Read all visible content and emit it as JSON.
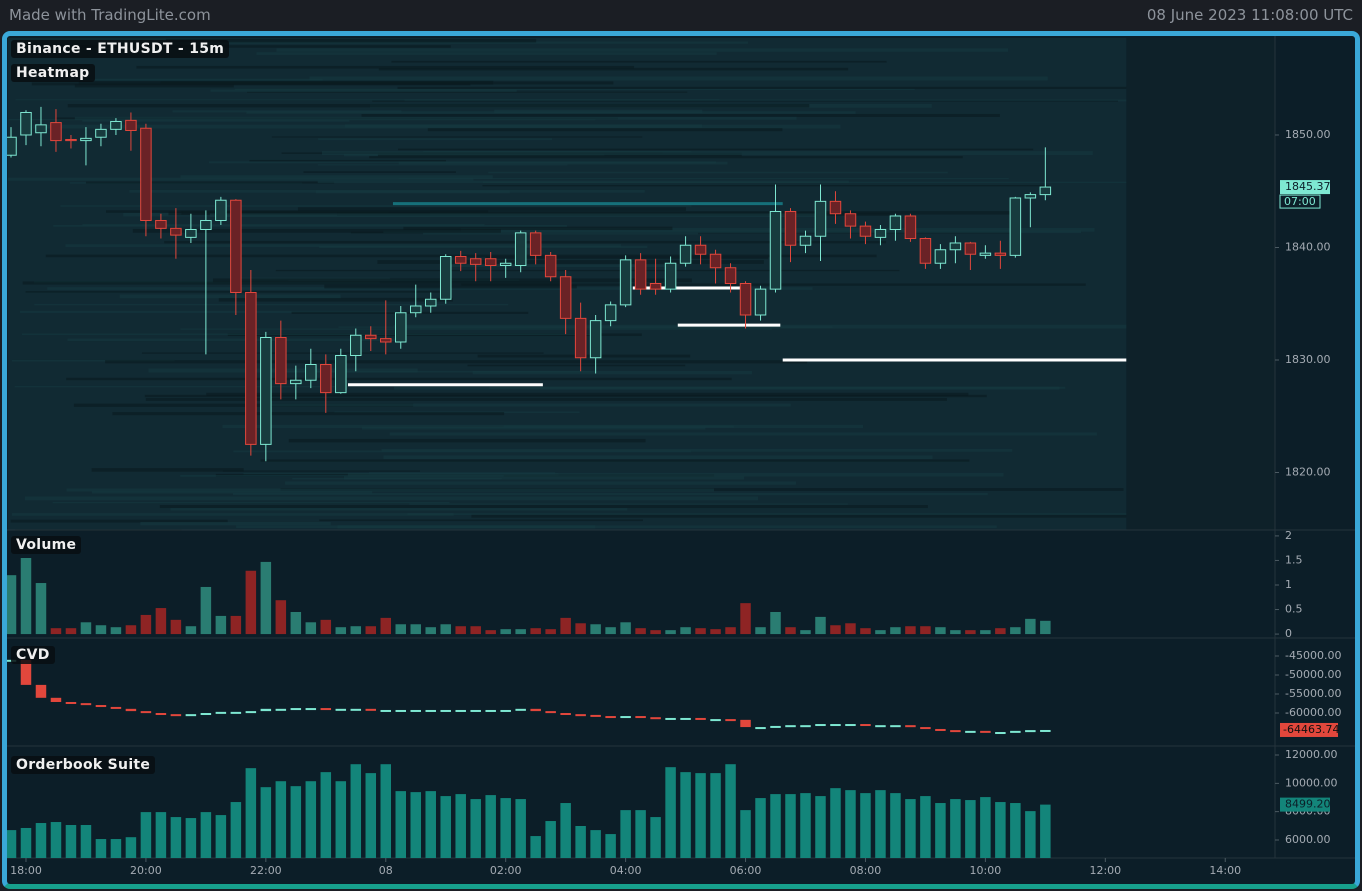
{
  "header": {
    "left": "Made with TradingLite.com",
    "right": "08 June 2023 11:08:00 UTC"
  },
  "chart_data": [
    {
      "type": "candlestick",
      "title": "Binance - ETHUSDT - 15m",
      "subtitle": "Heatmap",
      "up_color": "#7ee8d2",
      "down_color": "#e2473c",
      "x": [
        -0.25,
        0,
        0.25,
        0.5,
        0.75,
        1,
        1.25,
        1.5,
        1.75,
        2,
        2.25,
        2.5,
        2.75,
        3,
        3.25,
        3.5,
        3.75,
        4,
        4.25,
        4.5,
        4.75,
        5,
        5.25,
        5.5,
        5.75,
        6,
        6.25,
        6.5,
        6.75,
        7,
        7.25,
        7.5,
        7.75,
        8,
        8.25,
        8.5,
        8.75,
        9,
        9.25,
        9.5,
        9.75,
        10,
        10.25,
        10.5,
        10.75,
        11,
        11.25,
        11.5,
        11.75,
        12,
        12.25,
        12.5,
        12.75,
        13,
        13.25,
        13.5,
        13.75,
        14,
        14.25,
        14.5,
        14.75,
        15,
        15.25,
        15.5,
        15.75,
        16,
        16.25,
        16.5,
        16.75,
        17
      ],
      "open": [
        1848.2,
        1850,
        1850.2,
        1851.1,
        1849.6,
        1849.5,
        1849.8,
        1850.5,
        1851.3,
        1850.6,
        1842.4,
        1841.7,
        1840.9,
        1841.6,
        1842.4,
        1844.2,
        1836,
        1822.5,
        1832,
        1827.9,
        1828.2,
        1829.6,
        1827.1,
        1830.4,
        1832.2,
        1831.9,
        1831.6,
        1834.2,
        1834.8,
        1835.4,
        1839.2,
        1839,
        1839,
        1838.4,
        1838.4,
        1841.3,
        1839.3,
        1837.4,
        1833.7,
        1830.2,
        1833.5,
        1834.9,
        1838.9,
        1836.8,
        1836.3,
        1838.6,
        1840.2,
        1839.4,
        1838.2,
        1836.8,
        1834,
        1836.3,
        1843.2,
        1840.2,
        1841,
        1844.1,
        1843,
        1841.9,
        1840.9,
        1841.6,
        1842.8,
        1840.8,
        1838.6,
        1839.8,
        1840.4,
        1839.3,
        1839.5,
        1839.3,
        1844.4,
        1844.7
      ],
      "high": [
        1850.7,
        1852.2,
        1852.5,
        1852.3,
        1850,
        1850.7,
        1851,
        1851.5,
        1852,
        1851,
        1843,
        1843.5,
        1843,
        1843.3,
        1844.5,
        1844.3,
        1838,
        1832.5,
        1833.5,
        1829.5,
        1831,
        1830.5,
        1831,
        1832.8,
        1833,
        1835.3,
        1834.8,
        1836.7,
        1836,
        1839.4,
        1839.7,
        1839.5,
        1839.6,
        1839,
        1841.5,
        1841.5,
        1839.6,
        1838,
        1835.1,
        1834,
        1835.2,
        1839.3,
        1839.5,
        1839,
        1839.2,
        1841,
        1841,
        1839.8,
        1838.6,
        1837,
        1836.6,
        1845.6,
        1843.5,
        1841.5,
        1845.6,
        1845,
        1843.3,
        1842.3,
        1842,
        1843,
        1843,
        1840.9,
        1840.3,
        1841,
        1840.5,
        1840.2,
        1840.6,
        1844.5,
        1844.9,
        1848.9
      ],
      "low": [
        1848,
        1849.1,
        1849,
        1848.5,
        1848.8,
        1847.3,
        1849,
        1850,
        1848.6,
        1841,
        1840.8,
        1839,
        1840.4,
        1830.5,
        1842,
        1834,
        1821.5,
        1821,
        1826.5,
        1826.5,
        1827.5,
        1825.3,
        1827,
        1829,
        1830.8,
        1830.5,
        1831,
        1833.8,
        1834.2,
        1835,
        1837.9,
        1837,
        1837,
        1837.3,
        1837.8,
        1838.5,
        1837,
        1832.3,
        1829,
        1828.8,
        1833,
        1834.7,
        1835.8,
        1835.8,
        1836,
        1838.3,
        1838.5,
        1836.8,
        1836,
        1832.8,
        1833.5,
        1836,
        1838.7,
        1839.5,
        1838.8,
        1842.1,
        1840.8,
        1840.3,
        1840.2,
        1840.6,
        1840.5,
        1838.1,
        1838.1,
        1838.6,
        1838,
        1839,
        1838.1,
        1839.1,
        1841.8,
        1844.2
      ],
      "close": [
        1849.8,
        1852,
        1850.9,
        1849.5,
        1849.5,
        1849.7,
        1850.5,
        1851.2,
        1850.4,
        1842.4,
        1841.7,
        1841.1,
        1841.6,
        1842.4,
        1844.2,
        1836,
        1822.5,
        1832,
        1827.9,
        1828.2,
        1829.6,
        1827.1,
        1830.4,
        1832.2,
        1831.9,
        1831.6,
        1834.2,
        1834.8,
        1835.4,
        1839.2,
        1838.6,
        1838.5,
        1838.4,
        1838.6,
        1841.3,
        1839.3,
        1837.4,
        1833.7,
        1830.2,
        1833.5,
        1834.9,
        1838.9,
        1836.3,
        1836.3,
        1838.6,
        1840.2,
        1839.4,
        1838.2,
        1836.8,
        1834,
        1836.3,
        1843.2,
        1840.2,
        1841,
        1844.1,
        1843,
        1841.9,
        1841,
        1841.6,
        1842.8,
        1840.8,
        1838.6,
        1839.8,
        1840.4,
        1839.4,
        1839.5,
        1839.3,
        1844.4,
        1844.7,
        1845.37
      ],
      "countdown": "07:00",
      "levels": [
        {
          "price": 1843.9,
          "x_start": 6.12,
          "x_end": 12.62,
          "color": "#16707a"
        },
        {
          "price": 1827.8,
          "x_start": 5.37,
          "x_end": 8.62,
          "color": "#ffffff"
        },
        {
          "price": 1836.4,
          "x_start": 10.12,
          "x_end": 12.08,
          "color": "#ffffff"
        },
        {
          "price": 1833.1,
          "x_start": 10.87,
          "x_end": 12.58,
          "color": "#ffffff"
        },
        {
          "price": 1830,
          "x_start": 12.62,
          "x_end": 18.35,
          "color": "#ffffff"
        }
      ],
      "xlim": [
        -0.3,
        20.83
      ],
      "xticks": [
        {
          "value": 0,
          "label": "18:00"
        },
        {
          "value": 2,
          "label": "20:00"
        },
        {
          "value": 4,
          "label": "22:00"
        },
        {
          "value": 6,
          "label": "08"
        },
        {
          "value": 8,
          "label": "02:00"
        },
        {
          "value": 10,
          "label": "04:00"
        },
        {
          "value": 12,
          "label": "06:00"
        },
        {
          "value": 14,
          "label": "08:00"
        },
        {
          "value": 16,
          "label": "10:00"
        },
        {
          "value": 18,
          "label": "12:00"
        },
        {
          "value": 20,
          "label": "14:00"
        }
      ],
      "ylim": [
        1814.89,
        1858.62
      ],
      "yticks": [
        {
          "value": 1820,
          "label": "1820.00"
        },
        {
          "value": 1830,
          "label": "1830.00"
        },
        {
          "value": 1840,
          "label": "1840.00"
        },
        {
          "value": 1850,
          "label": "1850.00"
        }
      ]
    },
    {
      "type": "bar",
      "title": "Volume",
      "up_color": "#2a7d72",
      "down_color": "#8e2424",
      "values": [
        1.2,
        1.55,
        1.04,
        0.12,
        0.12,
        0.24,
        0.18,
        0.14,
        0.18,
        0.39,
        0.53,
        0.29,
        0.16,
        0.96,
        0.37,
        0.37,
        1.29,
        1.47,
        0.69,
        0.45,
        0.24,
        0.29,
        0.14,
        0.16,
        0.16,
        0.33,
        0.2,
        0.2,
        0.14,
        0.2,
        0.16,
        0.16,
        0.08,
        0.1,
        0.1,
        0.12,
        0.1,
        0.33,
        0.22,
        0.2,
        0.14,
        0.24,
        0.12,
        0.08,
        0.08,
        0.14,
        0.12,
        0.1,
        0.14,
        0.63,
        0.14,
        0.45,
        0.14,
        0.08,
        0.35,
        0.18,
        0.22,
        0.12,
        0.08,
        0.14,
        0.16,
        0.16,
        0.14,
        0.08,
        0.08,
        0.08,
        0.12,
        0.14,
        0.31,
        0.27
      ],
      "ylim": [
        -0.08,
        2.1
      ],
      "yticks": [
        0,
        0.5,
        1,
        1.5,
        2
      ]
    },
    {
      "type": "cvd",
      "title": "CVD",
      "up_color": "#7ee8d2",
      "down_color": "#e2473c",
      "values": [
        -46000,
        -52600,
        -56000,
        -57100,
        -57400,
        -57900,
        -58400,
        -58900,
        -59500,
        -60000,
        -60300,
        -60500,
        -60300,
        -60000,
        -59700,
        -59700,
        -59500,
        -58900,
        -58900,
        -58700,
        -58700,
        -58900,
        -58900,
        -58900,
        -59200,
        -59200,
        -59200,
        -59200,
        -59200,
        -59200,
        -59200,
        -59200,
        -59200,
        -59200,
        -58900,
        -59500,
        -60000,
        -60300,
        -60500,
        -60800,
        -61100,
        -60800,
        -61100,
        -61300,
        -61300,
        -61300,
        -61600,
        -61600,
        -61800,
        -63700,
        -63700,
        -63400,
        -63200,
        -63200,
        -62900,
        -62900,
        -62900,
        -63200,
        -63200,
        -63200,
        -63700,
        -64200,
        -64500,
        -64700,
        -64700,
        -65000,
        -65000,
        -64700,
        -64500,
        -64463.74
      ],
      "ylim": [
        -68680,
        -40790
      ],
      "yticks": [
        {
          "value": -60000,
          "label": "-60000.00"
        },
        {
          "value": -55000,
          "label": "-55000.00"
        },
        {
          "value": -50000,
          "label": "-50000.00"
        },
        {
          "value": -45000,
          "label": "-45000.00"
        }
      ]
    },
    {
      "type": "bar",
      "title": "Orderbook Suite",
      "color": "#13857a",
      "values": [
        6700,
        6850,
        7200,
        7270,
        7060,
        7060,
        6070,
        6070,
        6200,
        7970,
        7970,
        7620,
        7550,
        7970,
        7760,
        8680,
        11070,
        9730,
        10150,
        9800,
        10150,
        10790,
        10150,
        11350,
        10720,
        11350,
        9450,
        9380,
        9450,
        9100,
        9240,
        8890,
        9170,
        8960,
        8890,
        6280,
        7340,
        8610,
        6990,
        6700,
        6420,
        8110,
        8110,
        7620,
        11140,
        10790,
        10720,
        10720,
        11350,
        8110,
        8960,
        9240,
        9240,
        9310,
        9100,
        9660,
        9520,
        9310,
        9520,
        9310,
        8890,
        9100,
        8610,
        8890,
        8820,
        9030,
        8680,
        8610,
        8040,
        8499.2
      ],
      "last_value_label": "8499.20",
      "ylim": [
        4732,
        12493
      ],
      "yticks": [
        {
          "value": 6000,
          "label": "6000.00"
        },
        {
          "value": 8000,
          "label": "8000.00"
        },
        {
          "value": 10000,
          "label": "10000.00"
        },
        {
          "value": 12000,
          "label": "12000.00"
        }
      ]
    }
  ]
}
